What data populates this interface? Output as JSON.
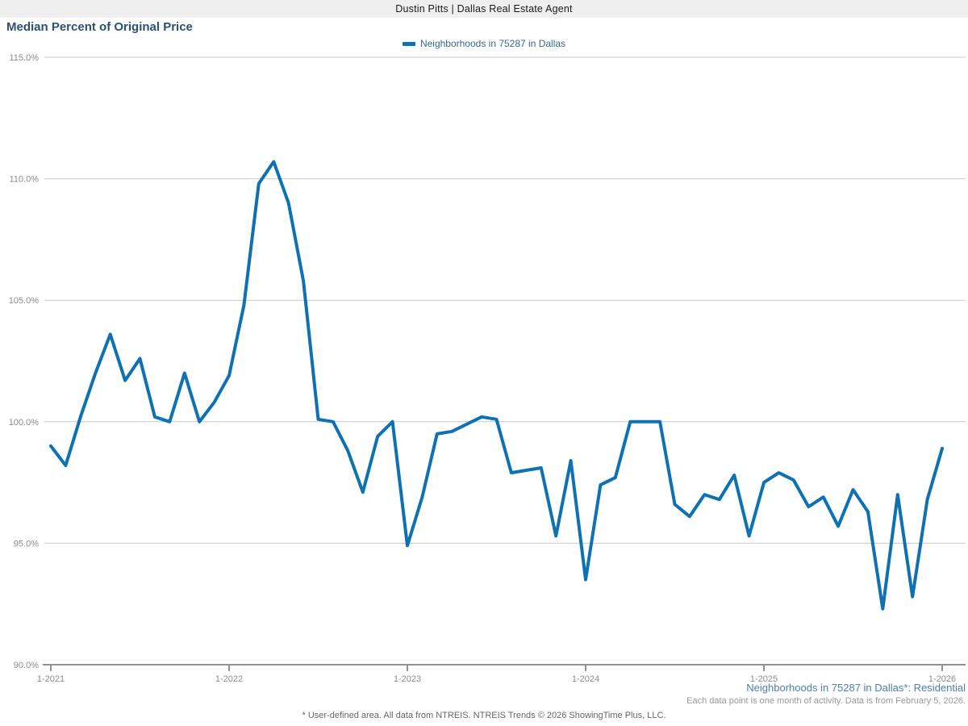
{
  "header": {
    "brand": "Dustin Pitts | Dallas Real Estate Agent"
  },
  "title": "Median Percent of Original Price",
  "legend": {
    "label": "Neighborhoods in 75287 in Dallas"
  },
  "chart_data": {
    "type": "line",
    "title": "Median Percent of Original Price",
    "xlabel": "",
    "ylabel": "",
    "ylim": [
      90,
      115
    ],
    "grid": "horizontal",
    "legend_position": "top-center",
    "y_ticks": [
      115,
      110,
      105,
      100,
      95,
      90
    ],
    "y_tick_labels": [
      "115.0%",
      "110.0%",
      "105.0%",
      "100.0%",
      "95.0%",
      "90.0%"
    ],
    "x_tick_labels": [
      "1-2021",
      "1-2022",
      "1-2023",
      "1-2024",
      "1-2025",
      "1-2026"
    ],
    "x": [
      "1-2021",
      "2-2021",
      "3-2021",
      "4-2021",
      "5-2021",
      "6-2021",
      "7-2021",
      "8-2021",
      "9-2021",
      "10-2021",
      "11-2021",
      "12-2021",
      "1-2022",
      "2-2022",
      "3-2022",
      "4-2022",
      "5-2022",
      "6-2022",
      "7-2022",
      "8-2022",
      "9-2022",
      "10-2022",
      "11-2022",
      "12-2022",
      "1-2023",
      "2-2023",
      "3-2023",
      "4-2023",
      "5-2023",
      "6-2023",
      "7-2023",
      "8-2023",
      "9-2023",
      "10-2023",
      "11-2023",
      "12-2023",
      "1-2024",
      "2-2024",
      "3-2024",
      "4-2024",
      "5-2024",
      "6-2024",
      "7-2024",
      "8-2024",
      "9-2024",
      "10-2024",
      "11-2024",
      "12-2024",
      "1-2025",
      "2-2025",
      "3-2025",
      "4-2025",
      "5-2025",
      "6-2025",
      "7-2025",
      "8-2025",
      "9-2025",
      "10-2025",
      "11-2025",
      "12-2025",
      "1-2026"
    ],
    "series": [
      {
        "name": "Neighborhoods in 75287 in Dallas",
        "values": [
          99.0,
          98.2,
          100.2,
          102.0,
          103.6,
          101.7,
          102.6,
          100.2,
          100.0,
          102.0,
          100.0,
          100.8,
          101.9,
          104.8,
          109.8,
          110.7,
          109.0,
          105.8,
          100.1,
          100.0,
          98.8,
          97.1,
          99.4,
          100.0,
          94.9,
          96.9,
          99.5,
          99.6,
          99.9,
          100.2,
          100.1,
          97.9,
          98.0,
          98.1,
          95.3,
          98.4,
          93.5,
          97.4,
          97.7,
          100.0,
          100.0,
          100.0,
          96.6,
          96.1,
          97.0,
          96.8,
          97.8,
          95.3,
          97.5,
          97.9,
          97.6,
          96.5,
          96.9,
          95.7,
          97.2,
          96.3,
          92.3,
          97.0,
          92.8,
          96.8,
          98.9
        ]
      }
    ]
  },
  "notes": {
    "series_note": "Neighborhoods in 75287 in Dallas*: Residential",
    "data_note": "Each data point is one month of activity. Data is from February 5, 2026.",
    "footer": "* User-defined area. All data from NTREIS. NTREIS Trends © 2026 ShowingTime Plus, LLC."
  },
  "colors": {
    "line": "#0d71b3",
    "title_text": "#2a5074",
    "legend_text": "#39688e",
    "series_note_text": "#4d7fa9",
    "grid": "#c8c8c8",
    "axis": "#919191",
    "tick_label": "#8c8c8c",
    "header_bg": "#efefef",
    "header_text": "#1a1a1a",
    "muted_note": "#9a9a9a",
    "footer_text": "#666666"
  }
}
